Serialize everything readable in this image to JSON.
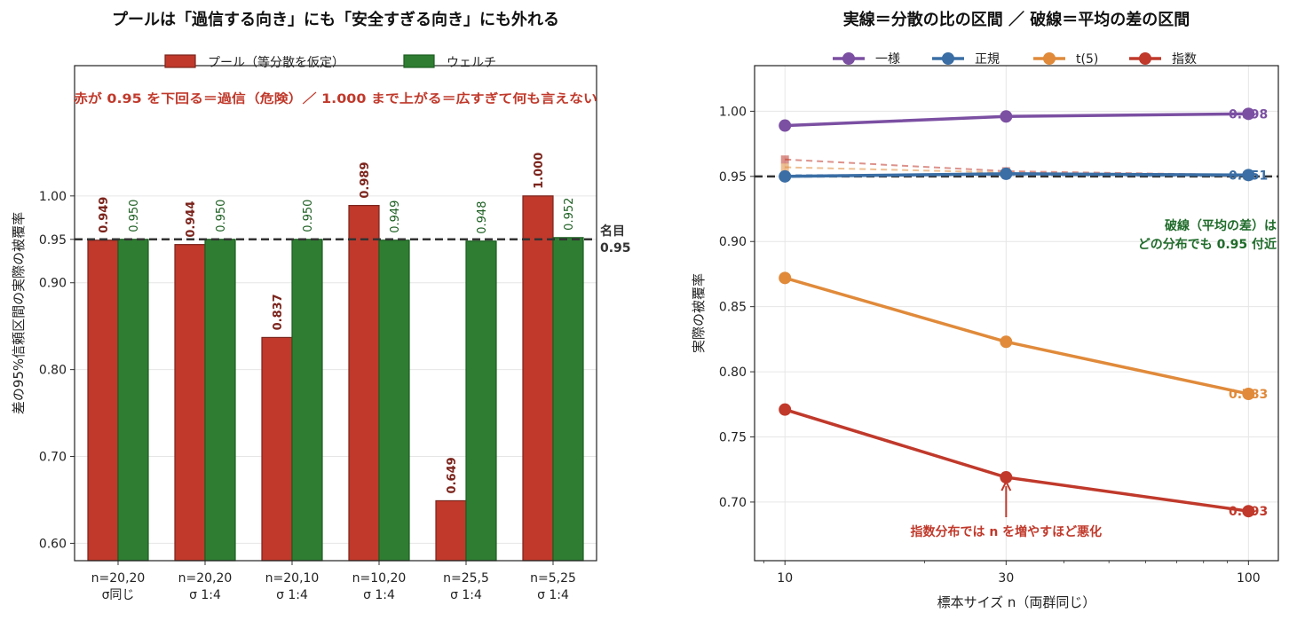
{
  "chart_data": [
    {
      "type": "bar",
      "title": "プールは「過信する向き」にも「安全すぎる向き」にも外れる",
      "ylabel": "差の95%信頼区間の実際の被覆率",
      "ylim": [
        0.58,
        1.15
      ],
      "yticks": [
        0.6,
        0.7,
        0.8,
        0.9,
        0.95,
        1.0
      ],
      "ytick_labels": [
        "0.60",
        "0.70",
        "0.80",
        "0.90",
        "0.95",
        "1.00"
      ],
      "categories": [
        [
          "n=20,20",
          "σ同じ"
        ],
        [
          "n=20,20",
          "σ 1:4"
        ],
        [
          "n=20,10",
          "σ 1:4"
        ],
        [
          "n=10,20",
          "σ 1:4"
        ],
        [
          "n=25,5",
          "σ 1:4"
        ],
        [
          "n=5,25",
          "σ 1:4"
        ]
      ],
      "series": [
        {
          "name": "プール（等分散を仮定）",
          "color": "#c0392b",
          "edge": "#7b241c",
          "values": [
            0.949,
            0.944,
            0.837,
            0.989,
            0.649,
            1.0
          ],
          "labels": [
            "0.949",
            "0.944",
            "0.837",
            "0.989",
            "0.649",
            "1.000"
          ]
        },
        {
          "name": "ウェルチ",
          "color": "#2e7d32",
          "edge": "#1b5e20",
          "values": [
            0.95,
            0.95,
            0.95,
            0.949,
            0.948,
            0.952
          ],
          "labels": [
            "0.950",
            "0.950",
            "0.950",
            "0.949",
            "0.948",
            "0.952"
          ]
        }
      ],
      "reference_line": {
        "value": 0.95,
        "label_lines": [
          "名目",
          "0.95"
        ]
      },
      "annotation": "赤が 0.95 を下回る＝過信（危険）／ 1.000 まで上がる＝広すぎて何も言えない",
      "annotation_color": "#c0392b",
      "legend": "top-center",
      "grid": "y"
    },
    {
      "type": "line",
      "title": "実線＝分散の比の区間 ／ 破線＝平均の差の区間",
      "xlabel": "標本サイズ n（両群同じ）",
      "ylabel": "実際の被覆率",
      "x": [
        10,
        30,
        100
      ],
      "xscale": "log",
      "xlim": [
        8.6,
        116
      ],
      "xticks": [
        10,
        30,
        100
      ],
      "ylim": [
        0.655,
        1.035
      ],
      "yticks": [
        0.7,
        0.75,
        0.8,
        0.85,
        0.9,
        0.95,
        1.0
      ],
      "ytick_labels": [
        "0.70",
        "0.75",
        "0.80",
        "0.85",
        "0.90",
        "0.95",
        "1.00"
      ],
      "series": [
        {
          "name": "一様",
          "color": "#7b4fa2",
          "values": [
            0.989,
            0.996,
            0.998
          ],
          "end_label": "0.998",
          "dashed_values": [
            0.95,
            0.952,
            0.951
          ]
        },
        {
          "name": "正規",
          "color": "#3a6ea5",
          "values": [
            0.95,
            0.952,
            0.951
          ],
          "end_label": "0.951",
          "dashed_values": [
            0.951,
            0.951,
            0.95
          ]
        },
        {
          "name": "t(5)",
          "color": "#e08a3a",
          "values": [
            0.872,
            0.823,
            0.783
          ],
          "end_label": "0.783",
          "dashed_values": [
            0.957,
            0.953,
            0.95
          ]
        },
        {
          "name": "指数",
          "color": "#c0392b",
          "values": [
            0.771,
            0.719,
            0.693
          ],
          "end_label": "0.693",
          "dashed_values": [
            0.963,
            0.954,
            0.951
          ]
        }
      ],
      "reference_line": {
        "value": 0.95
      },
      "annotations": [
        {
          "lines": [
            "破線（平均の差）は",
            "どの分布でも 0.95 付近"
          ],
          "color": "#1f6b2a"
        },
        {
          "lines": [
            "指数分布では n を増やすほど悪化"
          ],
          "color": "#c0392b",
          "arrow_to": {
            "x": 30,
            "y": 0.719
          }
        }
      ],
      "legend": "top-center",
      "grid": "both"
    }
  ]
}
